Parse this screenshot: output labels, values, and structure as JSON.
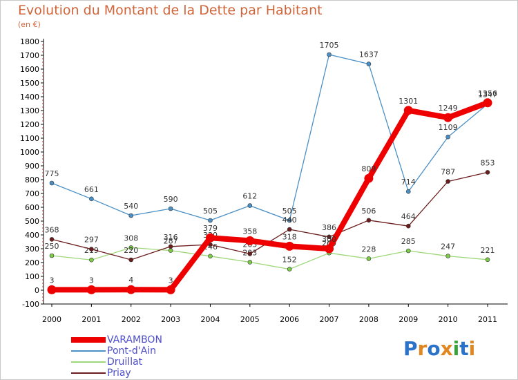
{
  "header": {
    "title": "Evolution du Montant de la Dette par Habitant",
    "subtitle": "(en €)"
  },
  "logo": {
    "letters": [
      "P",
      "r",
      "o",
      "x",
      "i",
      "t",
      "i"
    ],
    "colors": [
      "#2a73c9",
      "#e1871f",
      "#2a73c9",
      "#e1871f",
      "#3aa23a",
      "#2a73c9",
      "#e1871f"
    ]
  },
  "chart_data": {
    "type": "line",
    "x": [
      "2000",
      "2001",
      "2002",
      "2003",
      "2004",
      "2005",
      "2006",
      "2007",
      "2008",
      "2009",
      "2010",
      "2011"
    ],
    "ylim": [
      -100,
      1800
    ],
    "yticks": [
      -100,
      0,
      100,
      200,
      300,
      400,
      500,
      600,
      700,
      800,
      900,
      1000,
      1100,
      1200,
      1300,
      1400,
      1500,
      1600,
      1700,
      1800
    ],
    "grid": false,
    "legend_position": "bottom-left",
    "series": [
      {
        "name": "Pont-d'Ain",
        "color": "#4a90c6",
        "marker_color": "#4a90c6",
        "values": [
          775,
          661,
          540,
          590,
          505,
          612,
          505,
          1705,
          1637,
          714,
          1109,
          1347
        ]
      },
      {
        "name": "Druillat",
        "color": "#9ed77a",
        "marker_color": "#7ccc48",
        "values": [
          250,
          219,
          308,
          287,
          246,
          203,
          152,
          269,
          228,
          285,
          247,
          221
        ]
      },
      {
        "name": "Priay",
        "color": "#6b1d1d",
        "marker_color": "#6b1d1d",
        "values": [
          368,
          297,
          220,
          316,
          330,
          263,
          440,
          386,
          506,
          464,
          787,
          853
        ]
      },
      {
        "name": "VARAMBON",
        "color": "#ee0000",
        "marker_color": "#ee0000",
        "values": [
          3,
          3,
          4,
          3,
          379,
          358,
          318,
          300,
          809,
          1301,
          1249,
          1356
        ]
      }
    ],
    "legend_order": [
      "VARAMBON",
      "Pont-d'Ain",
      "Druillat",
      "Priay"
    ]
  }
}
